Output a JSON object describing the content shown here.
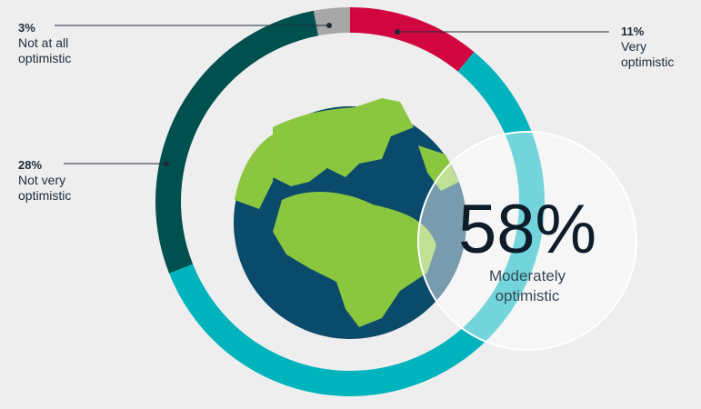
{
  "chart_data": {
    "type": "donut",
    "categories": [
      "Very optimistic",
      "Moderately optimistic",
      "Not very optimistic",
      "Not at all optimistic"
    ],
    "values": [
      11,
      58,
      28,
      3
    ],
    "value_labels": [
      "11%",
      "58%",
      "28%",
      "3%"
    ],
    "colors": [
      "#d2063f",
      "#00b3bd",
      "#00504f",
      "#a7a7a7"
    ]
  }
}
